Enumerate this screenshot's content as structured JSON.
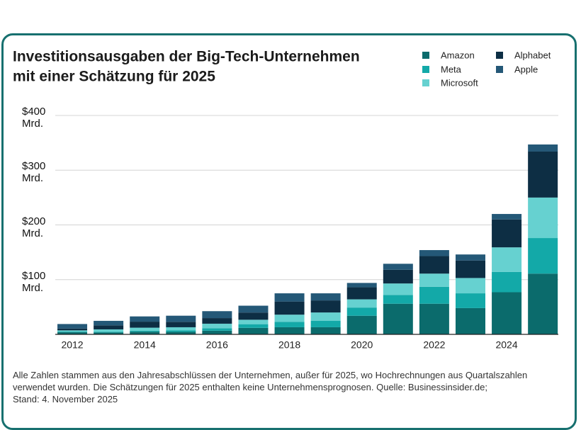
{
  "chart_data": {
    "type": "stacked-bar",
    "title": [
      "Investitionsausgaben der Big-Tech-Unternehmen",
      "mit einer Schätzung für 2025"
    ],
    "categories": [
      "2012",
      null,
      "2014",
      null,
      "2016",
      null,
      "2018",
      null,
      "2020",
      null,
      "2022",
      null,
      "2024",
      null
    ],
    "series": [
      {
        "name": "Amazon",
        "color": "#0b6b6c",
        "values": [
          3.8,
          3.4,
          4.9,
          4.6,
          6.7,
          11.9,
          13,
          13,
          34,
          56,
          56,
          48,
          77,
          111
        ]
      },
      {
        "name": "Meta",
        "color": "#13a9a8",
        "values": [
          1.2,
          1.4,
          1.8,
          2.5,
          4.5,
          6.7,
          10,
          12,
          15,
          16,
          31,
          27,
          37,
          65
        ]
      },
      {
        "name": "Microsoft",
        "color": "#66d1d0",
        "values": [
          2.3,
          4.3,
          5.5,
          5.9,
          8.3,
          8.1,
          13,
          15,
          15,
          21,
          24,
          28,
          45,
          74
        ]
      },
      {
        "name": "Alphabet",
        "color": "#0d2e44",
        "values": [
          3.3,
          7.4,
          11,
          9.9,
          10.2,
          13.2,
          24,
          22,
          22,
          25,
          32,
          32,
          51,
          84
        ]
      },
      {
        "name": "Apple",
        "color": "#245877",
        "values": [
          8.3,
          8.2,
          9.6,
          11.2,
          12.7,
          12.5,
          15,
          13,
          8,
          11,
          11,
          11,
          10,
          13
        ]
      }
    ],
    "ylim": [
      0,
      400
    ],
    "yticks": [
      {
        "value": 100,
        "label": "$100 Mrd."
      },
      {
        "value": 200,
        "label": "$200 Mrd."
      },
      {
        "value": 300,
        "label": "$300 Mrd."
      },
      {
        "value": 400,
        "label": "$400 Mrd."
      }
    ],
    "grid": true,
    "footnote": [
      "Alle Zahlen stammen aus den Jahresabschlüssen der Unternehmen, außer für 2025, wo Hochrechnungen aus Quartalszahlen",
      "verwendet wurden. Die Schätzungen für 2025 enthalten keine Unternehmensprognosen. Quelle: Businessinsider.de;",
      "Stand: 4. November 2025"
    ]
  }
}
